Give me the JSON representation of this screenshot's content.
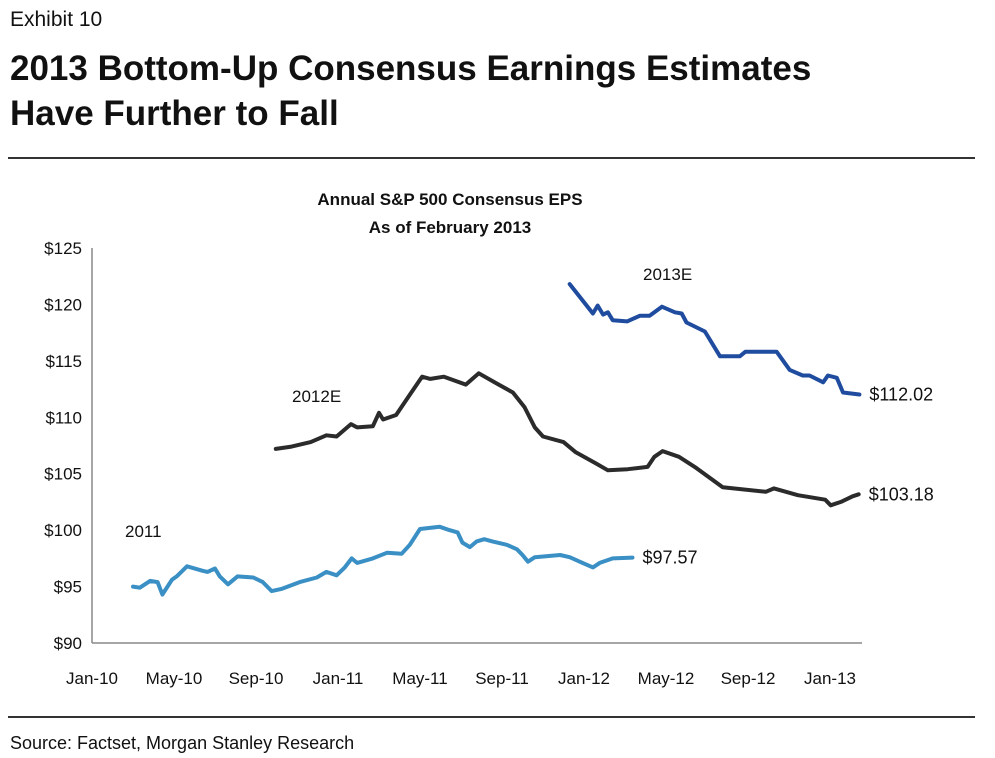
{
  "header": {
    "exhibit": "Exhibit 10",
    "title_line1": "2013 Bottom-Up Consensus Earnings Estimates",
    "title_line2": "Have Further to Fall"
  },
  "footer": {
    "source": "Source: Factset, Morgan Stanley Research"
  },
  "chart_data": {
    "type": "line",
    "title": "Annual S&P 500 Consensus EPS",
    "subtitle": "As of February 2013",
    "xlabel": "",
    "ylabel": "",
    "ylim": [
      90,
      125
    ],
    "xlim": [
      "2010-01-01",
      "2013-03-01"
    ],
    "yticks": [
      "$125",
      "$120",
      "$115",
      "$110",
      "$105",
      "$100",
      "$95",
      "$90"
    ],
    "xticks": [
      "Jan-10",
      "May-10",
      "Sep-10",
      "Jan-11",
      "May-11",
      "Sep-11",
      "Jan-12",
      "May-12",
      "Sep-12",
      "Jan-13"
    ],
    "grid": false,
    "legend": "none",
    "series": [
      {
        "name": "2011",
        "color": "#3a8fc4",
        "end_label": "$97.57",
        "points": [
          [
            "2010-03-01",
            95.0
          ],
          [
            "2010-03-11",
            94.9
          ],
          [
            "2010-03-26",
            95.5
          ],
          [
            "2010-04-07",
            95.4
          ],
          [
            "2010-04-14",
            94.3
          ],
          [
            "2010-04-28",
            95.6
          ],
          [
            "2010-05-05",
            95.9
          ],
          [
            "2010-05-20",
            96.8
          ],
          [
            "2010-06-13",
            96.4
          ],
          [
            "2010-06-20",
            96.3
          ],
          [
            "2010-07-01",
            96.6
          ],
          [
            "2010-07-08",
            95.9
          ],
          [
            "2010-07-20",
            95.2
          ],
          [
            "2010-08-04",
            95.9
          ],
          [
            "2010-08-27",
            95.8
          ],
          [
            "2010-09-11",
            95.4
          ],
          [
            "2010-09-24",
            94.6
          ],
          [
            "2010-10-09",
            94.8
          ],
          [
            "2010-11-05",
            95.4
          ],
          [
            "2010-11-30",
            95.8
          ],
          [
            "2010-12-14",
            96.3
          ],
          [
            "2010-12-29",
            96.0
          ],
          [
            "2011-01-11",
            96.7
          ],
          [
            "2011-01-21",
            97.5
          ],
          [
            "2011-01-29",
            97.1
          ],
          [
            "2011-02-22",
            97.5
          ],
          [
            "2011-03-13",
            98.0
          ],
          [
            "2011-04-04",
            97.9
          ],
          [
            "2011-04-16",
            98.7
          ],
          [
            "2011-05-01",
            100.1
          ],
          [
            "2011-05-30",
            100.3
          ],
          [
            "2011-06-14",
            100.0
          ],
          [
            "2011-06-26",
            99.8
          ],
          [
            "2011-07-03",
            98.9
          ],
          [
            "2011-07-14",
            98.5
          ],
          [
            "2011-07-24",
            99.0
          ],
          [
            "2011-08-05",
            99.2
          ],
          [
            "2011-08-17",
            99.0
          ],
          [
            "2011-09-08",
            98.7
          ],
          [
            "2011-09-23",
            98.3
          ],
          [
            "2011-10-01",
            97.8
          ],
          [
            "2011-10-09",
            97.2
          ],
          [
            "2011-10-19",
            97.6
          ],
          [
            "2011-11-26",
            97.8
          ],
          [
            "2011-12-10",
            97.6
          ],
          [
            "2011-12-29",
            97.1
          ],
          [
            "2012-01-14",
            96.7
          ],
          [
            "2012-01-24",
            97.1
          ],
          [
            "2012-02-13",
            97.5
          ],
          [
            "2012-03-12",
            97.57
          ]
        ]
      },
      {
        "name": "2012E",
        "color": "#2b2b2b",
        "end_label": "$103.18",
        "points": [
          [
            "2010-09-30",
            107.2
          ],
          [
            "2010-10-23",
            107.4
          ],
          [
            "2010-11-21",
            107.8
          ],
          [
            "2010-12-14",
            108.4
          ],
          [
            "2010-12-29",
            108.3
          ],
          [
            "2011-01-20",
            109.4
          ],
          [
            "2011-01-29",
            109.1
          ],
          [
            "2011-02-22",
            109.2
          ],
          [
            "2011-03-01",
            110.4
          ],
          [
            "2011-03-07",
            109.8
          ],
          [
            "2011-03-26",
            110.2
          ],
          [
            "2011-04-16",
            112.0
          ],
          [
            "2011-05-04",
            113.6
          ],
          [
            "2011-05-16",
            113.4
          ],
          [
            "2011-06-06",
            113.6
          ],
          [
            "2011-07-08",
            112.9
          ],
          [
            "2011-07-27",
            113.9
          ],
          [
            "2011-08-23",
            113.0
          ],
          [
            "2011-09-17",
            112.2
          ],
          [
            "2011-10-04",
            110.9
          ],
          [
            "2011-10-19",
            109.1
          ],
          [
            "2011-11-01",
            108.3
          ],
          [
            "2011-12-01",
            107.8
          ],
          [
            "2011-12-19",
            106.9
          ],
          [
            "2012-01-19",
            105.9
          ],
          [
            "2012-02-06",
            105.3
          ],
          [
            "2012-03-05",
            105.4
          ],
          [
            "2012-04-04",
            105.6
          ],
          [
            "2012-04-14",
            106.5
          ],
          [
            "2012-04-26",
            107.0
          ],
          [
            "2012-05-20",
            106.5
          ],
          [
            "2012-06-13",
            105.6
          ],
          [
            "2012-07-24",
            103.8
          ],
          [
            "2012-09-27",
            103.4
          ],
          [
            "2012-10-09",
            103.7
          ],
          [
            "2012-11-14",
            103.1
          ],
          [
            "2012-12-24",
            102.7
          ],
          [
            "2013-01-02",
            102.2
          ],
          [
            "2013-01-17",
            102.5
          ],
          [
            "2013-02-04",
            103.0
          ],
          [
            "2013-02-13",
            103.18
          ]
        ]
      },
      {
        "name": "2013E",
        "color": "#1f4c9e",
        "end_label": "$112.02",
        "points": [
          [
            "2011-12-10",
            121.8
          ],
          [
            "2012-01-14",
            119.2
          ],
          [
            "2012-01-21",
            119.9
          ],
          [
            "2012-01-29",
            119.1
          ],
          [
            "2012-02-06",
            119.3
          ],
          [
            "2012-02-13",
            118.6
          ],
          [
            "2012-03-04",
            118.5
          ],
          [
            "2012-03-23",
            119.0
          ],
          [
            "2012-04-07",
            119.0
          ],
          [
            "2012-04-25",
            119.8
          ],
          [
            "2012-05-14",
            119.3
          ],
          [
            "2012-05-24",
            119.2
          ],
          [
            "2012-06-01",
            118.4
          ],
          [
            "2012-06-28",
            117.6
          ],
          [
            "2012-07-20",
            115.4
          ],
          [
            "2012-08-19",
            115.4
          ],
          [
            "2012-08-27",
            115.8
          ],
          [
            "2012-10-13",
            115.8
          ],
          [
            "2012-11-02",
            114.2
          ],
          [
            "2012-11-21",
            113.7
          ],
          [
            "2012-12-01",
            113.7
          ],
          [
            "2012-12-21",
            113.1
          ],
          [
            "2012-12-28",
            113.7
          ],
          [
            "2013-01-11",
            113.5
          ],
          [
            "2013-01-20",
            112.2
          ],
          [
            "2013-02-14",
            112.02
          ]
        ]
      }
    ]
  }
}
